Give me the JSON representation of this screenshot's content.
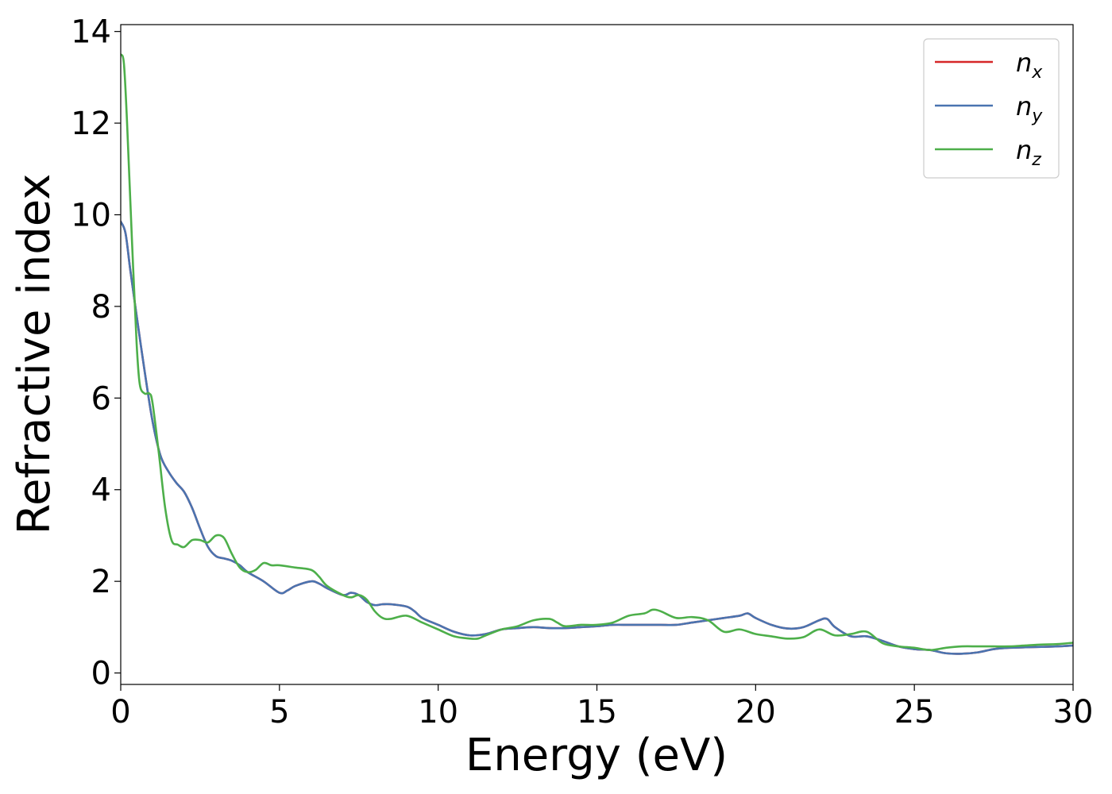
{
  "chart_data": {
    "type": "line",
    "xlabel": "Energy (eV)",
    "ylabel": "Refractive index",
    "xlim": [
      0,
      30
    ],
    "ylim": [
      -0.25,
      14.15
    ],
    "xticks": [
      "0",
      "5",
      "10",
      "15",
      "20",
      "25",
      "30"
    ],
    "yticks": [
      "0",
      "2",
      "4",
      "6",
      "8",
      "10",
      "12",
      "14"
    ],
    "grid": false,
    "legend_position": "top-right",
    "series": [
      {
        "name": "n",
        "subscript": "x",
        "color": "#d62728",
        "x": [
          0,
          0.15,
          0.3,
          0.5,
          0.75,
          1.0,
          1.25,
          1.5,
          1.75,
          2.0,
          2.25,
          2.5,
          2.75,
          3.0,
          3.25,
          3.5,
          3.75,
          4.0,
          4.5,
          5.0,
          5.25,
          5.5,
          6.0,
          6.25,
          6.5,
          7.0,
          7.25,
          7.5,
          7.75,
          8.0,
          8.25,
          8.5,
          9.0,
          9.25,
          9.5,
          10.0,
          10.5,
          11.0,
          11.5,
          12.0,
          12.5,
          13.0,
          13.5,
          14.0,
          14.5,
          15.0,
          15.5,
          16.0,
          16.5,
          17.0,
          17.5,
          18.0,
          18.5,
          19.0,
          19.5,
          19.75,
          20.0,
          20.5,
          21.0,
          21.5,
          22.0,
          22.25,
          22.5,
          23.0,
          23.5,
          24.0,
          24.5,
          25.0,
          25.5,
          26.0,
          26.5,
          27.0,
          27.5,
          28.0,
          28.5,
          29.0,
          29.5,
          30.0
        ],
        "y": [
          9.85,
          9.6,
          8.8,
          7.8,
          6.6,
          5.5,
          4.75,
          4.4,
          4.15,
          3.95,
          3.6,
          3.15,
          2.75,
          2.55,
          2.5,
          2.45,
          2.35,
          2.2,
          2.0,
          1.75,
          1.8,
          1.9,
          2.0,
          1.95,
          1.85,
          1.7,
          1.75,
          1.7,
          1.55,
          1.48,
          1.5,
          1.5,
          1.45,
          1.35,
          1.2,
          1.05,
          0.9,
          0.82,
          0.85,
          0.95,
          0.98,
          1.0,
          0.98,
          0.98,
          1.0,
          1.02,
          1.05,
          1.05,
          1.05,
          1.05,
          1.05,
          1.1,
          1.15,
          1.2,
          1.25,
          1.3,
          1.2,
          1.05,
          0.97,
          1.0,
          1.15,
          1.18,
          1.0,
          0.8,
          0.8,
          0.7,
          0.58,
          0.52,
          0.5,
          0.43,
          0.42,
          0.45,
          0.52,
          0.55,
          0.56,
          0.57,
          0.58,
          0.6
        ]
      },
      {
        "name": "n",
        "subscript": "y",
        "color": "#4a74b0",
        "x": [
          0,
          0.15,
          0.3,
          0.5,
          0.75,
          1.0,
          1.25,
          1.5,
          1.75,
          2.0,
          2.25,
          2.5,
          2.75,
          3.0,
          3.25,
          3.5,
          3.75,
          4.0,
          4.5,
          5.0,
          5.25,
          5.5,
          6.0,
          6.25,
          6.5,
          7.0,
          7.25,
          7.5,
          7.75,
          8.0,
          8.25,
          8.5,
          9.0,
          9.25,
          9.5,
          10.0,
          10.5,
          11.0,
          11.5,
          12.0,
          12.5,
          13.0,
          13.5,
          14.0,
          14.5,
          15.0,
          15.5,
          16.0,
          16.5,
          17.0,
          17.5,
          18.0,
          18.5,
          19.0,
          19.5,
          19.75,
          20.0,
          20.5,
          21.0,
          21.5,
          22.0,
          22.25,
          22.5,
          23.0,
          23.5,
          24.0,
          24.5,
          25.0,
          25.5,
          26.0,
          26.5,
          27.0,
          27.5,
          28.0,
          28.5,
          29.0,
          29.5,
          30.0
        ],
        "y": [
          9.85,
          9.6,
          8.8,
          7.8,
          6.6,
          5.5,
          4.75,
          4.4,
          4.15,
          3.95,
          3.6,
          3.15,
          2.75,
          2.55,
          2.5,
          2.45,
          2.35,
          2.2,
          2.0,
          1.75,
          1.8,
          1.9,
          2.0,
          1.95,
          1.85,
          1.7,
          1.75,
          1.7,
          1.55,
          1.48,
          1.5,
          1.5,
          1.45,
          1.35,
          1.2,
          1.05,
          0.9,
          0.82,
          0.85,
          0.95,
          0.98,
          1.0,
          0.98,
          0.98,
          1.0,
          1.02,
          1.05,
          1.05,
          1.05,
          1.05,
          1.05,
          1.1,
          1.15,
          1.2,
          1.25,
          1.3,
          1.2,
          1.05,
          0.97,
          1.0,
          1.15,
          1.18,
          1.0,
          0.8,
          0.8,
          0.7,
          0.58,
          0.52,
          0.5,
          0.43,
          0.42,
          0.45,
          0.52,
          0.55,
          0.56,
          0.57,
          0.58,
          0.6
        ]
      },
      {
        "name": "n",
        "subscript": "z",
        "color": "#4daf4a",
        "x": [
          0,
          0.1,
          0.2,
          0.35,
          0.5,
          0.6,
          0.75,
          0.9,
          1.0,
          1.2,
          1.4,
          1.6,
          1.8,
          2.0,
          2.25,
          2.5,
          2.75,
          3.0,
          3.25,
          3.5,
          3.75,
          4.0,
          4.25,
          4.5,
          4.75,
          5.0,
          5.5,
          6.0,
          6.25,
          6.5,
          7.0,
          7.25,
          7.5,
          7.75,
          8.0,
          8.25,
          8.5,
          9.0,
          9.5,
          10.0,
          10.5,
          11.0,
          11.25,
          11.5,
          12.0,
          12.5,
          13.0,
          13.5,
          13.75,
          14.0,
          14.5,
          15.0,
          15.5,
          16.0,
          16.5,
          16.75,
          17.0,
          17.5,
          18.0,
          18.5,
          19.0,
          19.5,
          20.0,
          20.5,
          21.0,
          21.5,
          22.0,
          22.5,
          23.0,
          23.5,
          24.0,
          24.5,
          25.0,
          25.5,
          26.0,
          26.5,
          27.0,
          27.5,
          28.0,
          28.5,
          29.0,
          29.5,
          30.0
        ],
        "y": [
          13.5,
          13.3,
          12.0,
          9.5,
          7.2,
          6.3,
          6.1,
          6.1,
          5.9,
          4.8,
          3.6,
          2.9,
          2.8,
          2.75,
          2.9,
          2.9,
          2.85,
          3.0,
          2.95,
          2.6,
          2.3,
          2.2,
          2.25,
          2.4,
          2.35,
          2.35,
          2.3,
          2.25,
          2.1,
          1.9,
          1.7,
          1.65,
          1.7,
          1.6,
          1.35,
          1.2,
          1.18,
          1.25,
          1.1,
          0.95,
          0.8,
          0.75,
          0.75,
          0.82,
          0.95,
          1.02,
          1.15,
          1.18,
          1.1,
          1.02,
          1.05,
          1.05,
          1.1,
          1.25,
          1.3,
          1.38,
          1.35,
          1.2,
          1.22,
          1.15,
          0.9,
          0.95,
          0.85,
          0.8,
          0.75,
          0.78,
          0.95,
          0.82,
          0.85,
          0.9,
          0.65,
          0.58,
          0.55,
          0.5,
          0.55,
          0.58,
          0.58,
          0.58,
          0.58,
          0.6,
          0.62,
          0.63,
          0.66
        ]
      }
    ]
  }
}
